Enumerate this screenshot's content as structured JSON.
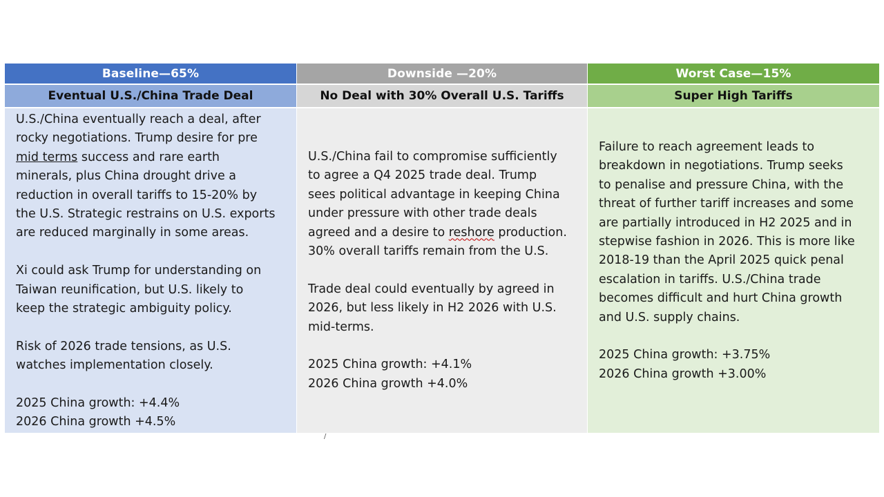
{
  "columns": [
    {
      "header": "Baseline—65%",
      "subheader": "Eventual U.S./China Trade Deal",
      "colors": {
        "header": "#4472c4",
        "subheader": "#8eaadb",
        "body": "#d9e2f3"
      },
      "lines": [
        "U.S./China eventually reach a deal, after",
        "rocky negotiations. Trump desire for pre",
        "mid terms",
        " success and rare earth",
        "minerals, plus China drought drive a",
        "reduction in overall tariffs to 15-20% by",
        "the U.S.  Strategic restrains on U.S. exports",
        "are reduced marginally in some areas.",
        "Xi could ask Trump for understanding on",
        "Taiwan reunification, but U.S. likely to",
        "keep the strategic ambiguity policy.",
        "Risk of 2026 trade tensions, as U.S.",
        "watches implementation closely.",
        "2025 China growth: +4.4%",
        "2026 China growth +4.5%"
      ]
    },
    {
      "header": "Downside —20%",
      "subheader": "No Deal with 30% Overall U.S. Tariffs",
      "colors": {
        "header": "#a5a5a5",
        "subheader": "#d6d6d6",
        "body": "#ededed"
      },
      "lines": [
        "U.S./China fail to compromise sufficiently",
        "to agree a Q4 2025 trade deal.  Trump",
        "sees political advantage in keeping China",
        "under pressure with other trade deals",
        "agreed and a desire to ",
        "reshore",
        " production.",
        "30% overall tariffs remain from the U.S.",
        "Trade deal could eventually by agreed in",
        "2026, but less likely in H2 2026 with U.S.",
        "mid-terms.",
        "2025 China growth: +4.1%",
        "2026 China growth +4.0%"
      ]
    },
    {
      "header": "Worst Case—15%",
      "subheader": "Super High Tariffs",
      "colors": {
        "header": "#70ad47",
        "subheader": "#a8d08d",
        "body": "#e2efd9"
      },
      "lines": [
        "Failure to reach agreement leads to",
        "breakdown in negotiations.  Trump seeks",
        "to penalise and pressure China, with the",
        "threat of further tariff increases and some",
        "are partially introduced in H2 2025 and in",
        "stepwise fashion in 2026.  This is more like",
        "2018-19 than the April 2025 quick penal",
        "escalation in tariffs.  U.S./China trade",
        "becomes difficult and hurt China growth",
        "and U.S. supply chains.",
        "2025 China growth: +3.75%",
        "2026 China growth +3.00%"
      ]
    }
  ],
  "stray_mark": "/"
}
